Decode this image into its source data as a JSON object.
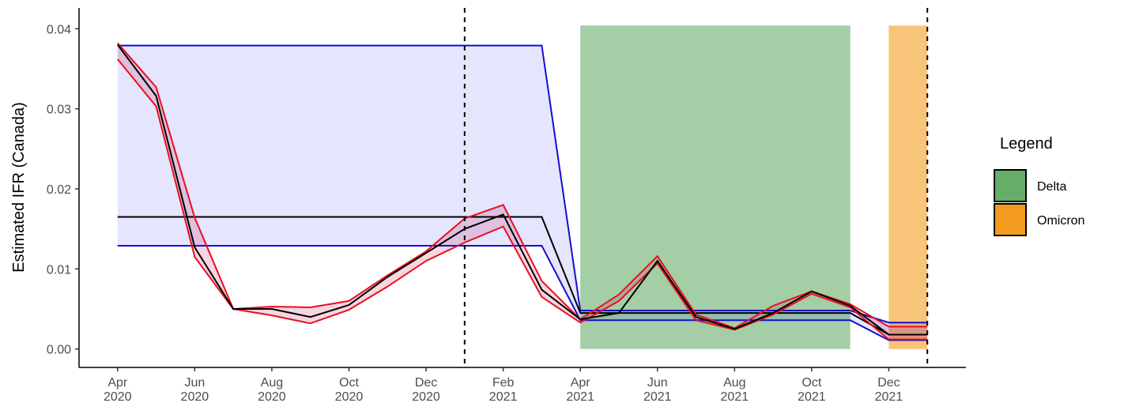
{
  "chart_data": {
    "type": "line",
    "y_label": "Estimated IFR (Canada)",
    "x": [
      "2020-04",
      "2020-05",
      "2020-06",
      "2020-07",
      "2020-08",
      "2020-09",
      "2020-10",
      "2020-11",
      "2020-12",
      "2021-01",
      "2021-02",
      "2021-03",
      "2021-04",
      "2021-05",
      "2021-06",
      "2021-07",
      "2021-08",
      "2021-09",
      "2021-10",
      "2021-11",
      "2021-12",
      "2022-01"
    ],
    "xlim": [
      "2020-03",
      "2022-02"
    ],
    "xticks": [
      {
        "value": "2020-04",
        "label": "Apr 2020"
      },
      {
        "value": "2020-06",
        "label": "Jun 2020"
      },
      {
        "value": "2020-08",
        "label": "Aug 2020"
      },
      {
        "value": "2020-10",
        "label": "Oct 2020"
      },
      {
        "value": "2020-12",
        "label": "Dec 2020"
      },
      {
        "value": "2021-02",
        "label": "Feb 2021"
      },
      {
        "value": "2021-04",
        "label": "Apr 2021"
      },
      {
        "value": "2021-06",
        "label": "Jun 2021"
      },
      {
        "value": "2021-08",
        "label": "Aug 2021"
      },
      {
        "value": "2021-10",
        "label": "Oct 2021"
      },
      {
        "value": "2021-12",
        "label": "Dec 2021"
      }
    ],
    "ylim": [
      -0.0023,
      0.0426
    ],
    "yticks": [
      {
        "value": 0,
        "label": "0.00"
      },
      0.01,
      0.02,
      0.03,
      0.04
    ],
    "mean": {
      "color": "#000000",
      "values": [
        0.038,
        0.0316,
        0.0127,
        0.005,
        0.005,
        0.004,
        0.0055,
        0.009,
        0.012,
        0.015,
        0.0168,
        0.0074,
        0.0037,
        0.0045,
        0.011,
        0.004,
        0.0025,
        0.0045,
        0.0072,
        0.0054,
        0.0018,
        0.0018
      ]
    },
    "lower": {
      "color": "#e8101e",
      "values": [
        0.0362,
        0.0303,
        0.0115,
        0.005,
        0.0042,
        0.0032,
        0.0049,
        0.0078,
        0.011,
        0.0133,
        0.0153,
        0.0065,
        0.0033,
        0.006,
        0.0107,
        0.0036,
        0.0024,
        0.0043,
        0.0069,
        0.0052,
        0.0012,
        0.0012
      ]
    },
    "upper": {
      "color": "#e8101e",
      "values": [
        0.0382,
        0.0327,
        0.0164,
        0.005,
        0.0053,
        0.0052,
        0.006,
        0.0092,
        0.0122,
        0.0163,
        0.018,
        0.0085,
        0.0037,
        0.0068,
        0.0116,
        0.0043,
        0.0026,
        0.0054,
        0.0072,
        0.0056,
        0.0028,
        0.0028
      ]
    },
    "fixed_mean": {
      "color": "#000000",
      "values": [
        0.0165,
        0.0165,
        0.0165,
        0.0165,
        0.0165,
        0.0165,
        0.0165,
        0.0165,
        0.0165,
        0.0165,
        0.0165,
        0.0165,
        0.0045,
        0.0045,
        0.0045,
        0.0045,
        0.0045,
        0.0045,
        0.0045,
        0.0045,
        0.0018,
        0.0018
      ]
    },
    "fixed_lower": {
      "color": "#1010d0",
      "values": [
        0.0129,
        0.0129,
        0.0129,
        0.0129,
        0.0129,
        0.0129,
        0.0129,
        0.0129,
        0.0129,
        0.0129,
        0.0129,
        0.0129,
        0.0036,
        0.0036,
        0.0036,
        0.0036,
        0.0036,
        0.0036,
        0.0036,
        0.0036,
        0.0011,
        0.0011
      ]
    },
    "fixed_upper": {
      "color": "#1010d0",
      "values": [
        0.0379,
        0.0379,
        0.0379,
        0.0379,
        0.0379,
        0.0379,
        0.0379,
        0.0379,
        0.0379,
        0.0379,
        0.0379,
        0.0379,
        0.0048,
        0.0048,
        0.0048,
        0.0048,
        0.0048,
        0.0048,
        0.0048,
        0.0048,
        0.0033,
        0.0033
      ]
    },
    "legend_title": "Legend",
    "regions": [
      {
        "name": "Delta",
        "color": "#66ad6a",
        "start": "2021-04",
        "end": "2021-11",
        "ymin": 0,
        "ymax": 0.0404
      },
      {
        "name": "Omicron",
        "color": "#f39c1f",
        "start": "2021-12",
        "end": "2022-01",
        "ymin": 0,
        "ymax": 0.0404
      }
    ],
    "vlines": [
      "2021-01",
      "2022-01"
    ]
  }
}
